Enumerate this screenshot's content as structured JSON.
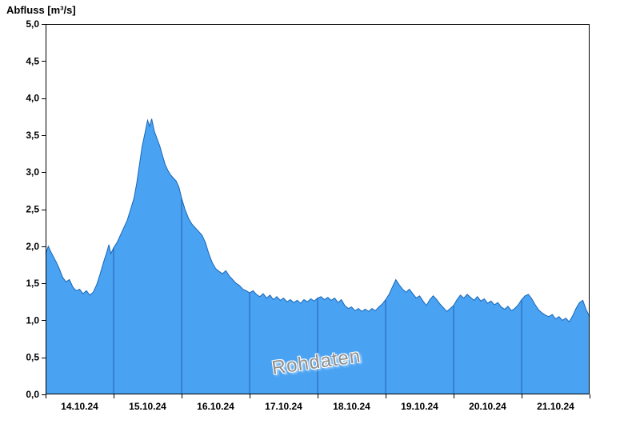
{
  "title": {
    "text": "Abfluss [m³/s]"
  },
  "watermark": {
    "text": "Rohdaten"
  },
  "chart_data": {
    "type": "area",
    "title": "Abfluss [m³/s]",
    "ylabel": "Abfluss [m³/s]",
    "xlabel": "",
    "ylim": [
      0.0,
      5.0
    ],
    "x_range_days": [
      0,
      8
    ],
    "grid": "vertical-day-lines-inside-area",
    "legend": "none",
    "watermark": "Rohdaten",
    "y_ticks": [
      {
        "value": 5.0,
        "label": "5,0"
      },
      {
        "value": 4.5,
        "label": "4,5"
      },
      {
        "value": 4.0,
        "label": "4,0"
      },
      {
        "value": 3.5,
        "label": "3,5"
      },
      {
        "value": 3.0,
        "label": "3,0"
      },
      {
        "value": 2.5,
        "label": "2,5"
      },
      {
        "value": 2.0,
        "label": "2,0"
      },
      {
        "value": 1.5,
        "label": "1,5"
      },
      {
        "value": 1.0,
        "label": "1,0"
      },
      {
        "value": 0.5,
        "label": "0,5"
      },
      {
        "value": 0.0,
        "label": "0,0"
      }
    ],
    "x_gridline_days": [
      1,
      2,
      3,
      4,
      5,
      6,
      7
    ],
    "x_tick_days": [
      0,
      1,
      2,
      3,
      4,
      5,
      6,
      7,
      8
    ],
    "x_labels": [
      "14.10.24",
      "15.10.24",
      "16.10.24",
      "17.10.24",
      "18.10.24",
      "19.10.24",
      "20.10.24",
      "21.10.24"
    ],
    "colors": {
      "area_fill": "#4aa2f2",
      "area_stroke": "#1867b7",
      "day_gridline": "#2363ae",
      "axis": "#000000",
      "watermark_text": "#8e8e8e"
    },
    "series": [
      {
        "name": "Abfluss",
        "unit": "m³/s",
        "points": [
          [
            0.0,
            1.9
          ],
          [
            0.04,
            2.0
          ],
          [
            0.08,
            1.92
          ],
          [
            0.12,
            1.85
          ],
          [
            0.16,
            1.78
          ],
          [
            0.2,
            1.7
          ],
          [
            0.25,
            1.58
          ],
          [
            0.3,
            1.52
          ],
          [
            0.35,
            1.55
          ],
          [
            0.4,
            1.45
          ],
          [
            0.45,
            1.4
          ],
          [
            0.5,
            1.42
          ],
          [
            0.55,
            1.36
          ],
          [
            0.6,
            1.4
          ],
          [
            0.65,
            1.34
          ],
          [
            0.7,
            1.38
          ],
          [
            0.75,
            1.48
          ],
          [
            0.8,
            1.62
          ],
          [
            0.85,
            1.78
          ],
          [
            0.9,
            1.92
          ],
          [
            0.93,
            2.02
          ],
          [
            0.96,
            1.9
          ],
          [
            1.0,
            1.98
          ],
          [
            1.05,
            2.05
          ],
          [
            1.1,
            2.15
          ],
          [
            1.15,
            2.25
          ],
          [
            1.2,
            2.35
          ],
          [
            1.25,
            2.5
          ],
          [
            1.3,
            2.65
          ],
          [
            1.34,
            2.85
          ],
          [
            1.38,
            3.1
          ],
          [
            1.42,
            3.35
          ],
          [
            1.46,
            3.52
          ],
          [
            1.5,
            3.7
          ],
          [
            1.53,
            3.62
          ],
          [
            1.56,
            3.72
          ],
          [
            1.6,
            3.55
          ],
          [
            1.64,
            3.45
          ],
          [
            1.68,
            3.35
          ],
          [
            1.72,
            3.22
          ],
          [
            1.76,
            3.1
          ],
          [
            1.8,
            3.02
          ],
          [
            1.84,
            2.96
          ],
          [
            1.88,
            2.92
          ],
          [
            1.92,
            2.88
          ],
          [
            1.96,
            2.8
          ],
          [
            2.0,
            2.65
          ],
          [
            2.05,
            2.5
          ],
          [
            2.1,
            2.38
          ],
          [
            2.15,
            2.3
          ],
          [
            2.2,
            2.25
          ],
          [
            2.25,
            2.2
          ],
          [
            2.3,
            2.15
          ],
          [
            2.35,
            2.05
          ],
          [
            2.4,
            1.9
          ],
          [
            2.45,
            1.78
          ],
          [
            2.5,
            1.7
          ],
          [
            2.55,
            1.66
          ],
          [
            2.6,
            1.63
          ],
          [
            2.65,
            1.67
          ],
          [
            2.7,
            1.6
          ],
          [
            2.75,
            1.55
          ],
          [
            2.8,
            1.5
          ],
          [
            2.85,
            1.47
          ],
          [
            2.9,
            1.42
          ],
          [
            2.95,
            1.4
          ],
          [
            3.0,
            1.37
          ],
          [
            3.05,
            1.4
          ],
          [
            3.1,
            1.35
          ],
          [
            3.15,
            1.32
          ],
          [
            3.2,
            1.36
          ],
          [
            3.25,
            1.3
          ],
          [
            3.3,
            1.34
          ],
          [
            3.35,
            1.28
          ],
          [
            3.4,
            1.32
          ],
          [
            3.45,
            1.27
          ],
          [
            3.5,
            1.3
          ],
          [
            3.55,
            1.25
          ],
          [
            3.6,
            1.28
          ],
          [
            3.65,
            1.24
          ],
          [
            3.7,
            1.27
          ],
          [
            3.75,
            1.23
          ],
          [
            3.8,
            1.28
          ],
          [
            3.85,
            1.25
          ],
          [
            3.9,
            1.29
          ],
          [
            3.95,
            1.26
          ],
          [
            4.0,
            1.3
          ],
          [
            4.05,
            1.32
          ],
          [
            4.1,
            1.28
          ],
          [
            4.15,
            1.31
          ],
          [
            4.2,
            1.27
          ],
          [
            4.25,
            1.3
          ],
          [
            4.3,
            1.24
          ],
          [
            4.35,
            1.28
          ],
          [
            4.4,
            1.2
          ],
          [
            4.45,
            1.16
          ],
          [
            4.5,
            1.18
          ],
          [
            4.55,
            1.13
          ],
          [
            4.6,
            1.16
          ],
          [
            4.65,
            1.12
          ],
          [
            4.7,
            1.15
          ],
          [
            4.75,
            1.12
          ],
          [
            4.8,
            1.16
          ],
          [
            4.85,
            1.13
          ],
          [
            4.9,
            1.18
          ],
          [
            4.95,
            1.22
          ],
          [
            5.0,
            1.28
          ],
          [
            5.05,
            1.35
          ],
          [
            5.1,
            1.45
          ],
          [
            5.15,
            1.55
          ],
          [
            5.2,
            1.48
          ],
          [
            5.25,
            1.42
          ],
          [
            5.3,
            1.38
          ],
          [
            5.35,
            1.42
          ],
          [
            5.4,
            1.36
          ],
          [
            5.45,
            1.3
          ],
          [
            5.5,
            1.33
          ],
          [
            5.55,
            1.26
          ],
          [
            5.6,
            1.2
          ],
          [
            5.65,
            1.28
          ],
          [
            5.7,
            1.33
          ],
          [
            5.75,
            1.28
          ],
          [
            5.8,
            1.22
          ],
          [
            5.85,
            1.17
          ],
          [
            5.9,
            1.12
          ],
          [
            5.95,
            1.16
          ],
          [
            6.0,
            1.2
          ],
          [
            6.05,
            1.28
          ],
          [
            6.1,
            1.34
          ],
          [
            6.15,
            1.3
          ],
          [
            6.2,
            1.35
          ],
          [
            6.25,
            1.31
          ],
          [
            6.3,
            1.27
          ],
          [
            6.35,
            1.32
          ],
          [
            6.4,
            1.26
          ],
          [
            6.45,
            1.29
          ],
          [
            6.5,
            1.23
          ],
          [
            6.55,
            1.26
          ],
          [
            6.6,
            1.21
          ],
          [
            6.65,
            1.24
          ],
          [
            6.7,
            1.18
          ],
          [
            6.75,
            1.15
          ],
          [
            6.8,
            1.19
          ],
          [
            6.85,
            1.13
          ],
          [
            6.9,
            1.16
          ],
          [
            6.95,
            1.21
          ],
          [
            7.0,
            1.28
          ],
          [
            7.05,
            1.33
          ],
          [
            7.1,
            1.35
          ],
          [
            7.15,
            1.29
          ],
          [
            7.2,
            1.21
          ],
          [
            7.25,
            1.14
          ],
          [
            7.3,
            1.1
          ],
          [
            7.35,
            1.07
          ],
          [
            7.4,
            1.05
          ],
          [
            7.45,
            1.08
          ],
          [
            7.5,
            1.02
          ],
          [
            7.55,
            1.05
          ],
          [
            7.6,
            1.0
          ],
          [
            7.65,
            1.03
          ],
          [
            7.7,
            0.98
          ],
          [
            7.75,
            1.06
          ],
          [
            7.8,
            1.16
          ],
          [
            7.85,
            1.24
          ],
          [
            7.9,
            1.27
          ],
          [
            7.95,
            1.14
          ],
          [
            8.0,
            1.05
          ]
        ]
      }
    ]
  }
}
